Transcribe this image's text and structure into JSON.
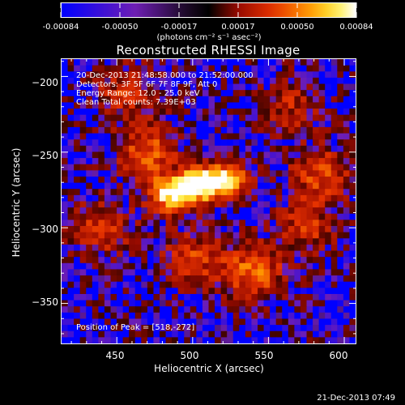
{
  "colorbar": {
    "tick_labels": [
      "-0.00084",
      "-0.00050",
      "-0.00017",
      "0.00017",
      "0.00050",
      "0.00084"
    ],
    "unit_label": "(photons cm⁻² s⁻¹ asec⁻²)"
  },
  "chart_data": {
    "type": "heatmap",
    "title": "Reconstructed RHESSI Image",
    "xlabel": "Heliocentric X (arcsec)",
    "ylabel": "Heliocentric Y (arcsec)",
    "x_ticks": [
      "450",
      "500",
      "550",
      "600"
    ],
    "y_ticks": [
      "−200",
      "−250",
      "−300",
      "−350"
    ],
    "xlim": [
      413,
      608
    ],
    "ylim": [
      -377,
      -188
    ],
    "colorscale_range": [
      -0.00084,
      0.00084
    ],
    "annotations": [
      "20-Dec-2013 21:48:58.000 to 21:52:00.000",
      "Detectors: 3F 5F 6F 7F 8F 9F, Att 0",
      "Energy Range: 12.0 - 25.0 keV",
      "Clean     Total counts: 7.39E+03"
    ],
    "peak_label": "Position of Peak = [518,-272]",
    "peak_position": [
      518,
      -272
    ],
    "sources": [
      {
        "x": 503,
        "y": -272,
        "intensity": 1.0
      },
      {
        "x": 485,
        "y": -278,
        "intensity": 0.9
      },
      {
        "x": 522,
        "y": -268,
        "intensity": 0.85
      },
      {
        "x": 470,
        "y": -250,
        "intensity": 0.5
      },
      {
        "x": 540,
        "y": -330,
        "intensity": 0.55
      },
      {
        "x": 585,
        "y": -265,
        "intensity": 0.45
      },
      {
        "x": 440,
        "y": -300,
        "intensity": 0.4
      },
      {
        "x": 500,
        "y": -320,
        "intensity": 0.4
      },
      {
        "x": 575,
        "y": -300,
        "intensity": 0.35
      },
      {
        "x": 455,
        "y": -210,
        "intensity": 0.35
      },
      {
        "x": 565,
        "y": -220,
        "intensity": 0.3
      }
    ]
  },
  "timestamp": "21-Dec-2013 07:49"
}
